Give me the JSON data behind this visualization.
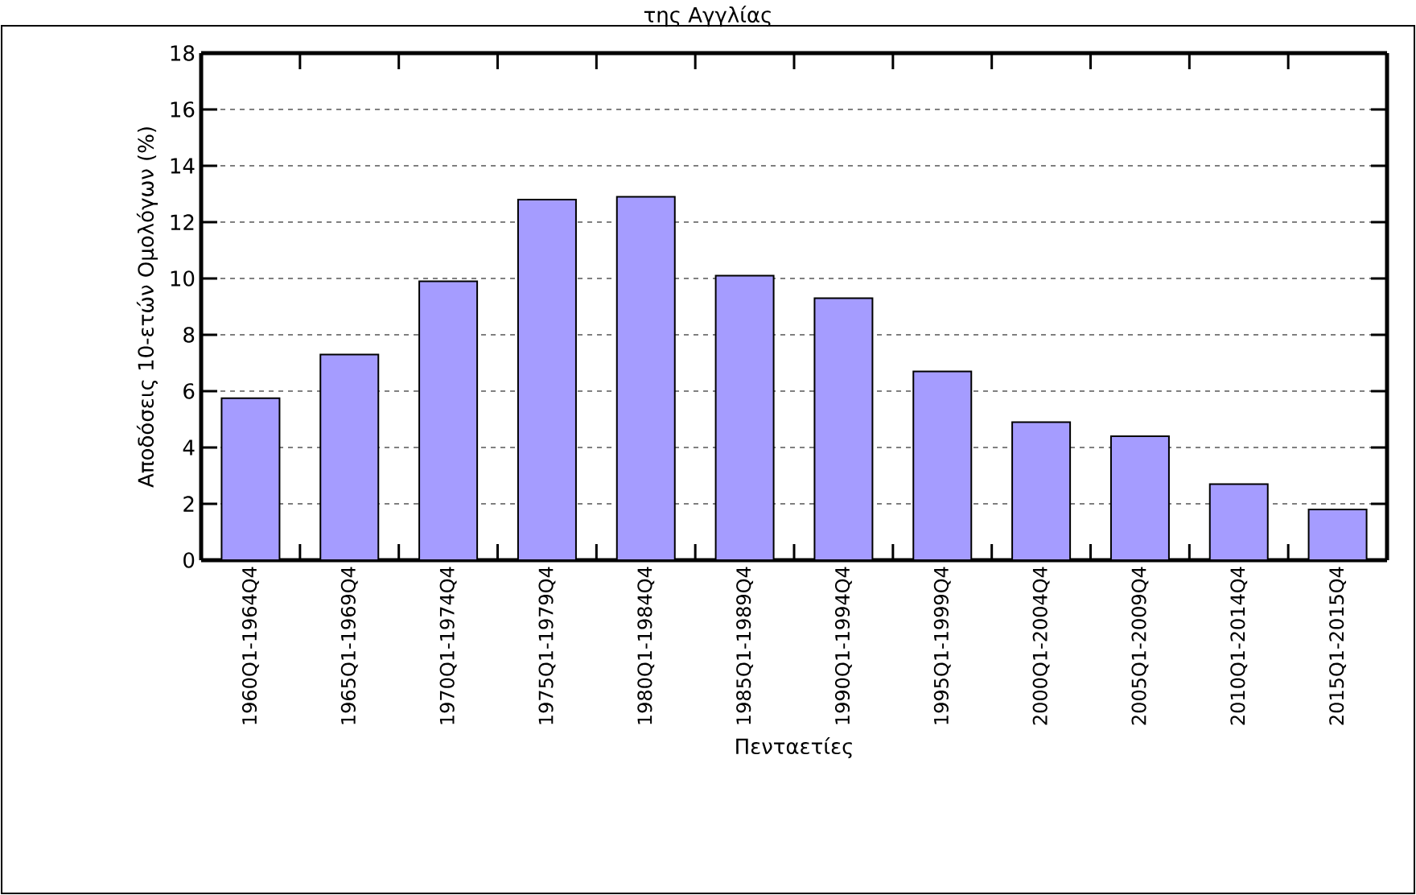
{
  "chart_data": {
    "type": "bar",
    "title": "της Αγγλίας",
    "xlabel": "Πενταετίες",
    "ylabel": "Αποδόσεις 10-ετών Ομολόγων (%)",
    "categories": [
      "1960Q1-1964Q4",
      "1965Q1-1969Q4",
      "1970Q1-1974Q4",
      "1975Q1-1979Q4",
      "1980Q1-1984Q4",
      "1985Q1-1989Q4",
      "1990Q1-1994Q4",
      "1995Q1-1999Q4",
      "2000Q1-2004Q4",
      "2005Q1-2009Q4",
      "2010Q1-2014Q4",
      "2015Q1-2015Q4"
    ],
    "values": [
      5.75,
      7.3,
      9.9,
      12.8,
      12.9,
      10.1,
      9.3,
      6.7,
      4.9,
      4.4,
      2.7,
      1.8
    ],
    "color": "#a59cff",
    "ylim": [
      0,
      18
    ],
    "yticks": [
      0,
      2,
      4,
      6,
      8,
      10,
      12,
      14,
      16,
      18
    ],
    "grid": "y"
  }
}
